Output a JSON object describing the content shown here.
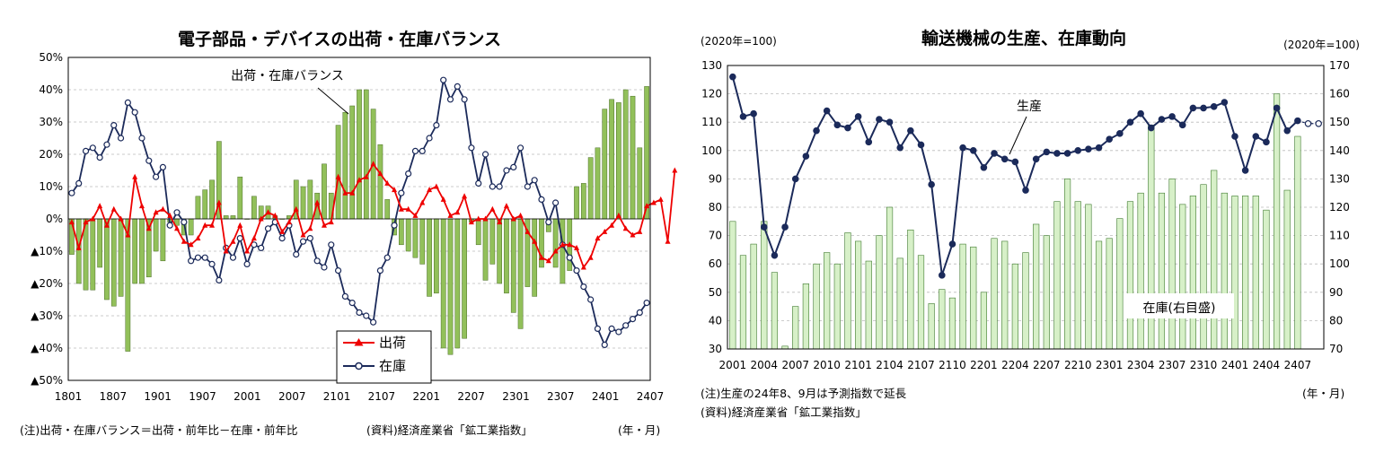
{
  "chart_data": [
    {
      "type": "bar+line",
      "title": "電子部品・デバイスの出荷・在庫バランス",
      "y_ticks": [
        "50%",
        "40%",
        "30%",
        "20%",
        "10%",
        "0%",
        "▲10%",
        "▲20%",
        "▲30%",
        "▲40%",
        "▲50%"
      ],
      "ylim": [
        -50,
        50
      ],
      "x_ticks": [
        "1801",
        "1807",
        "1901",
        "1907",
        "2001",
        "2007",
        "2101",
        "2107",
        "2201",
        "2207",
        "2301",
        "2307",
        "2401",
        "2407"
      ],
      "annotation": "出荷・在庫バランス",
      "legend": {
        "shipments": "出荷",
        "inventory": "在庫"
      },
      "note": "(注)出荷・在庫バランス＝出荷・前年比－在庫・前年比",
      "source": "(資料)経済産業省「鉱工業指数」",
      "xunit": "(年・月)",
      "series": [
        {
          "name": "出荷・在庫バランス",
          "type": "bar",
          "values": [
            -11,
            -20,
            -22,
            -22,
            -15,
            -25,
            -27,
            -24,
            -41,
            -20,
            -20,
            -18,
            -10,
            -13,
            -1,
            -2,
            -5,
            -5,
            7,
            9,
            12,
            24,
            1,
            1,
            13,
            0,
            7,
            4,
            4,
            1,
            0,
            1,
            12,
            10,
            12,
            8,
            17,
            8,
            29,
            33,
            35,
            40,
            40,
            34,
            23,
            6,
            -5,
            -8,
            -10,
            -12,
            -14,
            -24,
            -23,
            -40,
            -42,
            -40,
            -37,
            -1,
            -8,
            -19,
            -14,
            -20,
            -23,
            -29,
            -34,
            -21,
            -24,
            -15,
            -4,
            -15,
            -20,
            -16,
            10,
            11,
            19,
            22,
            34,
            37,
            36,
            40,
            38,
            22,
            41
          ]
        },
        {
          "name": "出荷",
          "type": "line",
          "values": [
            -1,
            -9,
            -1,
            0,
            4,
            -2,
            3,
            0,
            -5,
            13,
            4,
            -3,
            2,
            3,
            1,
            -3,
            -7,
            -8,
            -6,
            -2,
            -2,
            5,
            -10,
            -7,
            -2,
            -10,
            -6,
            0,
            2,
            1,
            -4,
            -1,
            3,
            -5,
            -3,
            5,
            -2,
            -1,
            13,
            8,
            8,
            12,
            13,
            17,
            14,
            11,
            9,
            3,
            3,
            1,
            5,
            9,
            10,
            6,
            1,
            2,
            7,
            -1,
            0,
            0,
            3,
            -1,
            4,
            0,
            1,
            -4,
            -7,
            -12,
            -13,
            -10,
            -8,
            -8,
            -9,
            -15,
            -12,
            -6,
            -4,
            -2,
            1,
            -3,
            -5,
            -4,
            4,
            5,
            6,
            -7,
            15
          ]
        },
        {
          "name": "在庫",
          "type": "line",
          "values": [
            8,
            11,
            21,
            22,
            19,
            23,
            29,
            25,
            36,
            33,
            25,
            18,
            13,
            16,
            -2,
            2,
            -1,
            -13,
            -12,
            -12,
            -14,
            -19,
            -9,
            -12,
            -6,
            -14,
            -8,
            -9,
            -3,
            -1,
            -6,
            -2,
            -11,
            -7,
            -6,
            -13,
            -15,
            -8,
            -16,
            -24,
            -26,
            -29,
            -30,
            -32,
            -16,
            -12,
            -2,
            8,
            14,
            21,
            21,
            25,
            29,
            43,
            37,
            41,
            37,
            22,
            11,
            20,
            10,
            10,
            15,
            16,
            22,
            10,
            12,
            6,
            -1,
            5,
            -8,
            -12,
            -16,
            -21,
            -25,
            -34,
            -39,
            -34,
            -35,
            -33,
            -31,
            -29,
            -26
          ]
        }
      ]
    },
    {
      "type": "bar+line",
      "title": "輸送機械の生産、在庫動向",
      "left_unit": "(2020年=100)",
      "right_unit": "(2020年=100)",
      "left_ticks": [
        "130",
        "120",
        "110",
        "100",
        "90",
        "80",
        "70",
        "60",
        "50",
        "40",
        "30"
      ],
      "ylim_left": [
        30,
        130
      ],
      "right_ticks": [
        "170",
        "160",
        "150",
        "140",
        "130",
        "120",
        "110",
        "100",
        "90",
        "80",
        "70"
      ],
      "ylim_right": [
        70,
        170
      ],
      "x_ticks": [
        "2001",
        "2004",
        "2007",
        "2010",
        "2101",
        "2104",
        "2107",
        "2110",
        "2201",
        "2204",
        "2207",
        "2210",
        "2301",
        "2304",
        "2307",
        "2310",
        "2401",
        "2404",
        "2407"
      ],
      "production_label": "生産",
      "inventory_label": "在庫(右目盛)",
      "note": "(注)生産の24年8、9月は予測指数で延長",
      "source": "(資料)経済産業省「鉱工業指数」",
      "xunit": "(年・月)",
      "series": [
        {
          "name": "在庫",
          "axis": "right",
          "type": "bar",
          "values": [
            115,
            103,
            107,
            115,
            97,
            71,
            85,
            93,
            100,
            104,
            100,
            111,
            108,
            101,
            110,
            120,
            102,
            112,
            103,
            86,
            91,
            88,
            107,
            106,
            90,
            109,
            108,
            100,
            104,
            114,
            110,
            122,
            130,
            122,
            121,
            108,
            109,
            116,
            122,
            125,
            149,
            125,
            130,
            121,
            124,
            128,
            133,
            125,
            124,
            124,
            124,
            119,
            160,
            126,
            145
          ]
        },
        {
          "name": "生産",
          "axis": "left",
          "type": "line",
          "values": [
            126,
            112,
            113,
            73,
            63,
            73,
            90,
            98,
            107,
            114,
            109,
            108,
            112,
            103,
            111,
            110,
            101,
            107,
            102,
            88,
            56,
            67,
            101,
            100,
            94,
            99,
            97,
            96,
            86,
            97,
            99.5,
            99,
            99,
            100,
            100.5,
            101,
            104,
            106,
            110,
            113,
            108,
            111,
            112,
            109,
            115,
            115,
            115.5,
            117,
            105,
            93,
            105,
            103,
            115,
            107,
            110.5,
            109.5,
            109.5
          ]
        }
      ]
    }
  ]
}
